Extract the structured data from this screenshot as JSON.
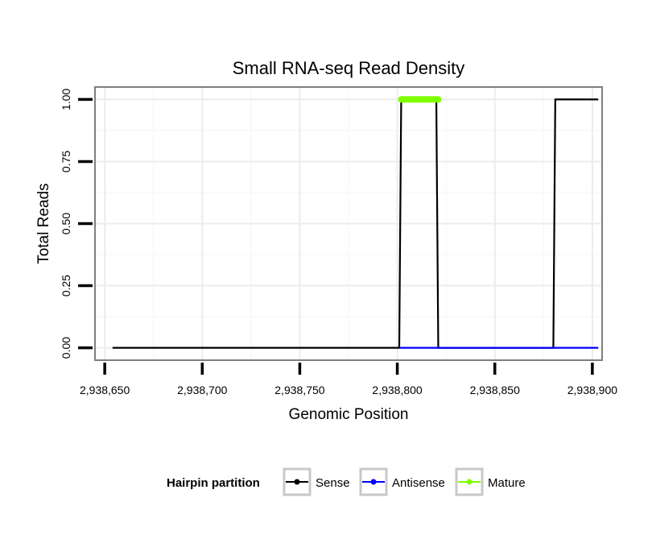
{
  "chart_data": {
    "type": "line",
    "title": "Small RNA-seq Read Density",
    "xlabel": "Genomic Position",
    "ylabel": "Total Reads",
    "xlim": [
      2938645,
      2938905
    ],
    "ylim": [
      -0.05,
      1.05
    ],
    "grid": true,
    "x_ticks": [
      2938650,
      2938700,
      2938750,
      2938800,
      2938850,
      2938900
    ],
    "x_tick_labels": [
      "2,938,650",
      "2,938,700",
      "2,938,750",
      "2,938,800",
      "2,938,850",
      "2,938,900"
    ],
    "y_ticks": [
      0,
      0.25,
      0.5,
      0.75,
      1.0
    ],
    "y_tick_labels": [
      "0.00",
      "0.25",
      "0.50",
      "0.75",
      "1.00"
    ],
    "series": [
      {
        "name": "Sense",
        "color": "#000000",
        "x": [
          2938654,
          2938801,
          2938802,
          2938820,
          2938821,
          2938880,
          2938881,
          2938903
        ],
        "y": [
          0,
          0,
          1,
          1,
          0,
          0,
          1,
          1
        ]
      },
      {
        "name": "Antisense",
        "color": "#0000ff",
        "x": [
          2938801,
          2938903
        ],
        "y": [
          0,
          0
        ]
      },
      {
        "name": "Mature",
        "color": "#7fff00",
        "x": [
          2938802,
          2938821
        ],
        "y": [
          1,
          1
        ]
      }
    ],
    "legend": {
      "title": "Hairpin partition",
      "position": "bottom",
      "entries": [
        "Sense",
        "Antisense",
        "Mature"
      ]
    }
  }
}
